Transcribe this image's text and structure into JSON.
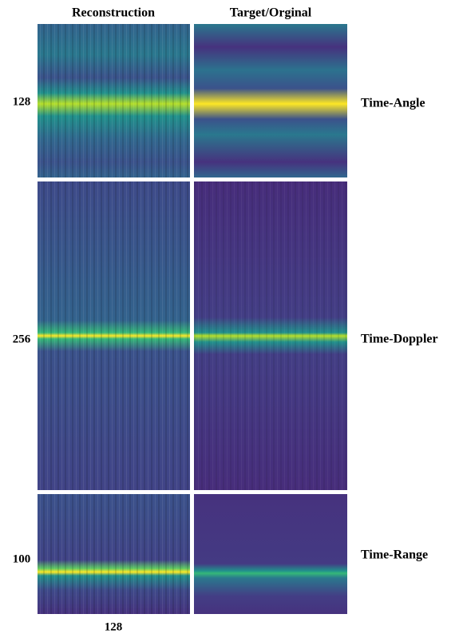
{
  "columns": [
    "Reconstruction",
    "Target/Orginal"
  ],
  "rows": [
    {
      "label": "Time-Angle",
      "size": 128
    },
    {
      "label": "Time-Doppler",
      "size": 256
    },
    {
      "label": "Time-Range",
      "size": 100
    }
  ],
  "x_size": 128
}
